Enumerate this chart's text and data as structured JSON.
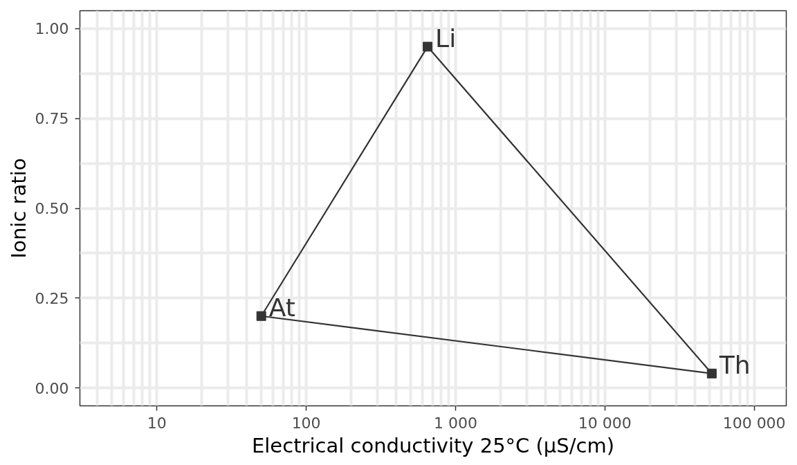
{
  "chart_data": {
    "type": "line",
    "xlabel": "Electrical conductivity 25°C (µS/cm)",
    "ylabel": "Ionic ratio",
    "log": "x",
    "xlim": [
      3.05,
      164000
    ],
    "ylim": [
      -0.05,
      1.05
    ],
    "xticks": [
      10,
      100,
      {
        "value": 1000,
        "label": "1 000"
      },
      {
        "value": 10000,
        "label": "10 000"
      },
      {
        "value": 100000,
        "label": "100 000"
      }
    ],
    "yticks": [
      {
        "value": 0,
        "label": "0.00"
      },
      {
        "value": 0.25,
        "label": "0.25"
      },
      {
        "value": 0.5,
        "label": "0.50"
      },
      {
        "value": 0.75,
        "label": "0.75"
      },
      {
        "value": 1,
        "label": "1.00"
      }
    ],
    "grid": true,
    "marker": "square",
    "line_style": "solid",
    "series": [
      {
        "color": "#333333",
        "x": [
          50,
          650,
          52000
        ],
        "values": [
          0.2,
          0.95,
          0.04
        ]
      },
      {
        "color": "#333333",
        "x": [
          50,
          52000
        ],
        "values": [
          0.2,
          0.04
        ],
        "marker": "none"
      }
    ],
    "annotations": [
      {
        "text": "At",
        "x": 50,
        "y": 0.2
      },
      {
        "text": "Li",
        "x": 650,
        "y": 0.95
      },
      {
        "text": "Th",
        "x": 52000,
        "y": 0.04
      }
    ]
  }
}
